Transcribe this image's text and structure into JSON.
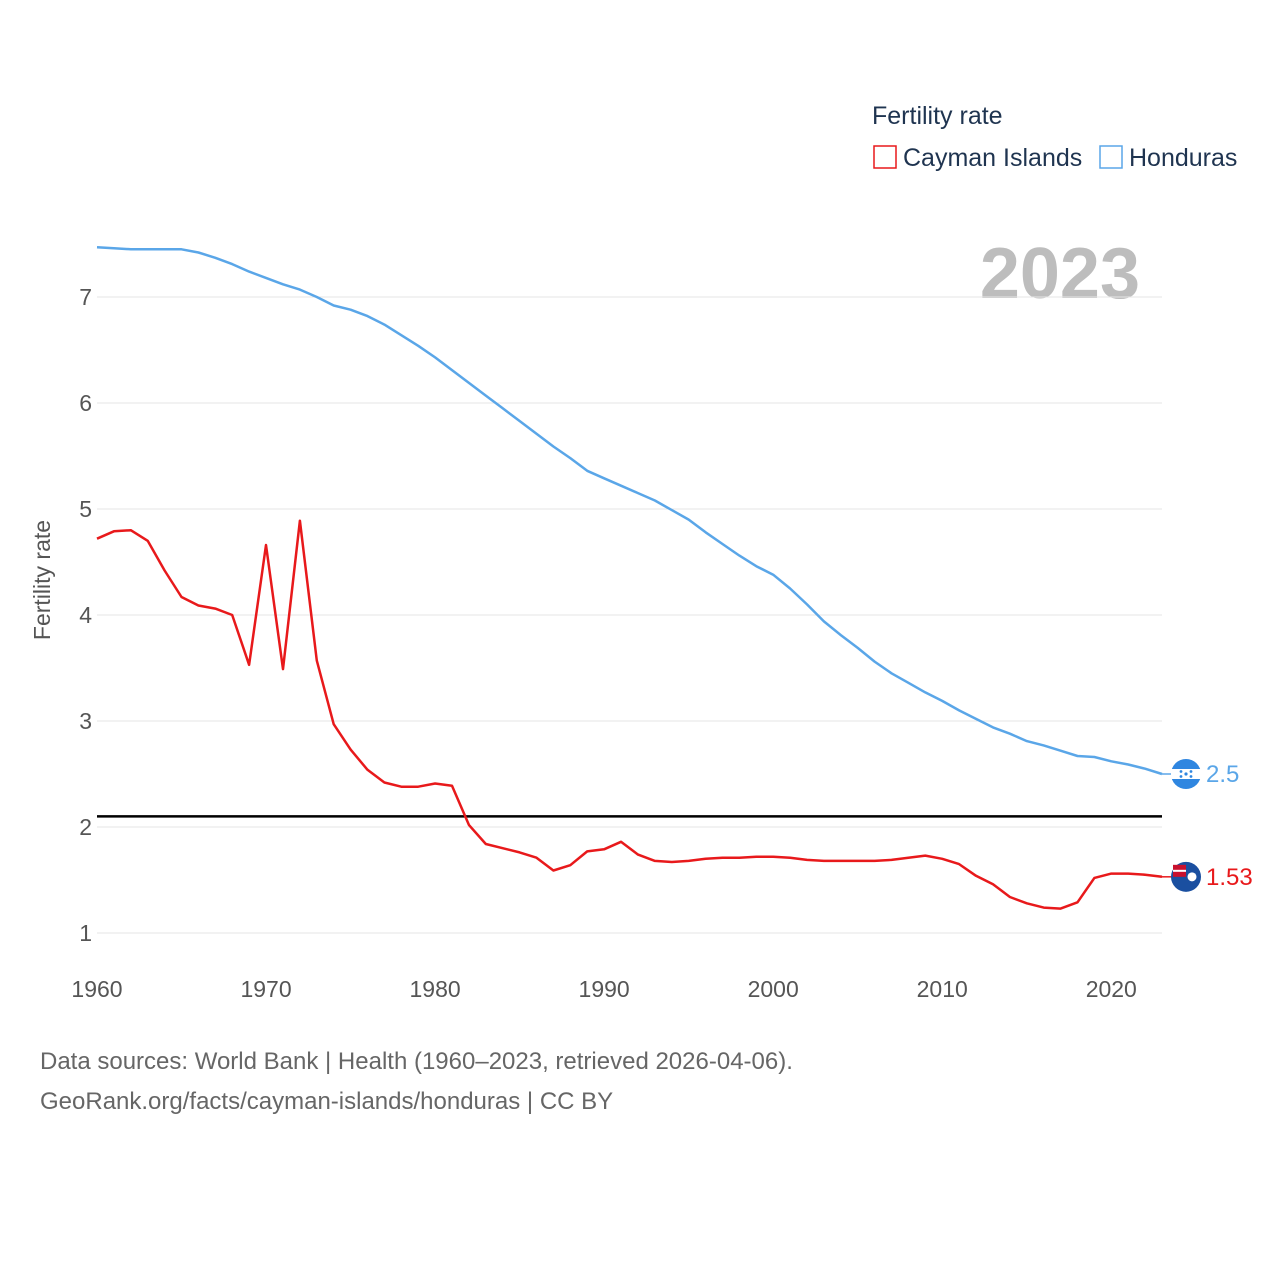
{
  "chart_data": {
    "type": "line",
    "legend_title": "Fertility rate",
    "ylabel": "Fertility rate",
    "xlabel": "",
    "xlim": [
      1960,
      2023
    ],
    "ylim": [
      0.8,
      7.7
    ],
    "y_ticks": [
      1,
      2,
      3,
      4,
      5,
      6,
      7
    ],
    "x_ticks": [
      1960,
      1970,
      1980,
      1990,
      2000,
      2010,
      2020
    ],
    "current_year": "2023",
    "reference_line": 2.1,
    "series": [
      {
        "name": "Cayman Islands",
        "color": "#e8191b",
        "end_label": "1.53",
        "x": [
          1960,
          1961,
          1962,
          1963,
          1964,
          1965,
          1966,
          1967,
          1968,
          1969,
          1970,
          1971,
          1972,
          1973,
          1974,
          1975,
          1976,
          1977,
          1978,
          1979,
          1980,
          1981,
          1982,
          1983,
          1984,
          1985,
          1986,
          1987,
          1988,
          1989,
          1990,
          1991,
          1992,
          1993,
          1994,
          1995,
          1996,
          1997,
          1998,
          1999,
          2000,
          2001,
          2002,
          2003,
          2004,
          2005,
          2006,
          2007,
          2008,
          2009,
          2010,
          2011,
          2012,
          2013,
          2014,
          2015,
          2016,
          2017,
          2018,
          2019,
          2020,
          2021,
          2022,
          2023
        ],
        "values": [
          4.72,
          4.79,
          4.8,
          4.7,
          4.42,
          4.17,
          4.09,
          4.06,
          4.0,
          3.53,
          4.66,
          3.49,
          4.89,
          3.57,
          2.97,
          2.73,
          2.54,
          2.42,
          2.38,
          2.38,
          2.41,
          2.39,
          2.02,
          1.84,
          1.8,
          1.76,
          1.71,
          1.59,
          1.64,
          1.77,
          1.79,
          1.86,
          1.74,
          1.68,
          1.67,
          1.68,
          1.7,
          1.71,
          1.71,
          1.72,
          1.72,
          1.71,
          1.69,
          1.68,
          1.68,
          1.68,
          1.68,
          1.69,
          1.71,
          1.73,
          1.7,
          1.65,
          1.54,
          1.46,
          1.34,
          1.28,
          1.24,
          1.23,
          1.29,
          1.52,
          1.56,
          1.56,
          1.55,
          1.53
        ]
      },
      {
        "name": "Honduras",
        "color": "#5aa6e8",
        "end_label": "2.5",
        "x": [
          1960,
          1961,
          1962,
          1963,
          1964,
          1965,
          1966,
          1967,
          1968,
          1969,
          1970,
          1971,
          1972,
          1973,
          1974,
          1975,
          1976,
          1977,
          1978,
          1979,
          1980,
          1981,
          1982,
          1983,
          1984,
          1985,
          1986,
          1987,
          1988,
          1989,
          1990,
          1991,
          1992,
          1993,
          1994,
          1995,
          1996,
          1997,
          1998,
          1999,
          2000,
          2001,
          2002,
          2003,
          2004,
          2005,
          2006,
          2007,
          2008,
          2009,
          2010,
          2011,
          2012,
          2013,
          2014,
          2015,
          2016,
          2017,
          2018,
          2019,
          2020,
          2021,
          2022,
          2023
        ],
        "values": [
          7.47,
          7.46,
          7.45,
          7.45,
          7.45,
          7.45,
          7.42,
          7.37,
          7.31,
          7.24,
          7.18,
          7.12,
          7.07,
          7.0,
          6.92,
          6.88,
          6.82,
          6.74,
          6.64,
          6.54,
          6.43,
          6.31,
          6.19,
          6.07,
          5.95,
          5.83,
          5.71,
          5.59,
          5.48,
          5.36,
          5.29,
          5.22,
          5.15,
          5.08,
          4.99,
          4.9,
          4.78,
          4.67,
          4.56,
          4.46,
          4.38,
          4.25,
          4.1,
          3.94,
          3.81,
          3.69,
          3.56,
          3.45,
          3.36,
          3.27,
          3.19,
          3.1,
          3.02,
          2.94,
          2.88,
          2.81,
          2.77,
          2.72,
          2.67,
          2.66,
          2.62,
          2.59,
          2.55,
          2.5
        ]
      }
    ]
  },
  "footer": {
    "line1": "Data sources: World Bank | Health (1960–2023, retrieved 2026-04-06).",
    "line2": "GeoRank.org/facts/cayman-islands/honduras | CC BY"
  }
}
